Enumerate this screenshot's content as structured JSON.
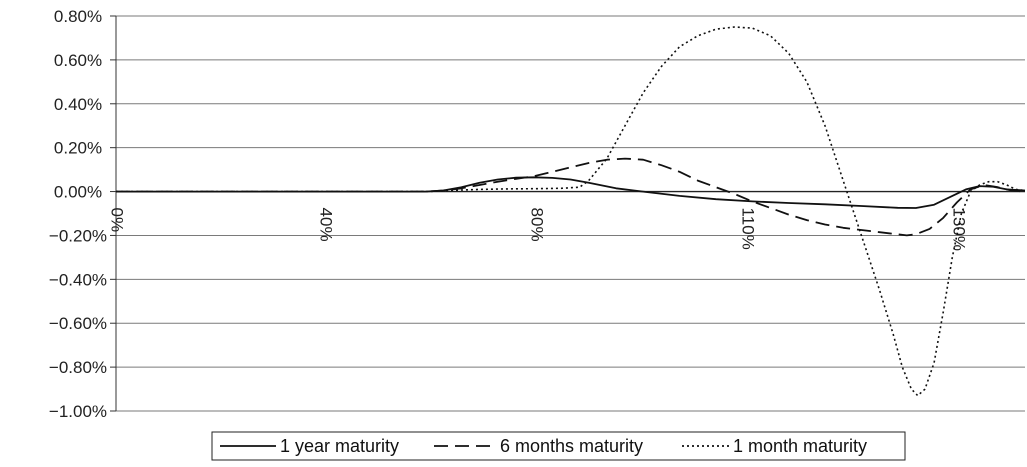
{
  "chart_data": {
    "type": "line",
    "title": "",
    "xlabel": "",
    "ylabel": "",
    "ylim": [
      -1.0,
      0.8
    ],
    "xlim": [
      0,
      1
    ],
    "y_ticks": [
      0.8,
      0.6,
      0.4,
      0.2,
      0.0,
      -0.2,
      -0.4,
      -0.6,
      -0.8,
      -1.0
    ],
    "y_tick_labels": [
      "0.80%",
      "0.60%",
      "0.40%",
      "0.20%",
      "0.00%",
      "−0.20%",
      "−0.40%",
      "−0.60%",
      "−0.80%",
      "−1.00%"
    ],
    "x_tick_labels": [
      {
        "label": "0%",
        "x": 0.0
      },
      {
        "label": "40%",
        "x": 0.23
      },
      {
        "label": "80%",
        "x": 0.462
      },
      {
        "label": "110%",
        "x": 0.694
      },
      {
        "label": "130%",
        "x": 0.926
      }
    ],
    "grid": "horizontal",
    "legend_position": "bottom",
    "series": [
      {
        "name": "1 year maturity",
        "style": "solid",
        "points": [
          [
            0,
            0
          ],
          [
            0.2,
            0
          ],
          [
            0.34,
            0
          ],
          [
            0.36,
            0.005
          ],
          [
            0.38,
            0.02
          ],
          [
            0.4,
            0.04
          ],
          [
            0.42,
            0.055
          ],
          [
            0.44,
            0.063
          ],
          [
            0.46,
            0.065
          ],
          [
            0.48,
            0.062
          ],
          [
            0.5,
            0.055
          ],
          [
            0.52,
            0.04
          ],
          [
            0.55,
            0.015
          ],
          [
            0.58,
            0
          ],
          [
            0.62,
            -0.02
          ],
          [
            0.66,
            -0.035
          ],
          [
            0.7,
            -0.045
          ],
          [
            0.74,
            -0.052
          ],
          [
            0.78,
            -0.058
          ],
          [
            0.82,
            -0.066
          ],
          [
            0.86,
            -0.074
          ],
          [
            0.88,
            -0.075
          ],
          [
            0.9,
            -0.06
          ],
          [
            0.92,
            -0.02
          ],
          [
            0.935,
            0.01
          ],
          [
            0.95,
            0.025
          ],
          [
            0.965,
            0.022
          ],
          [
            0.98,
            0.01
          ],
          [
            1.0,
            0.005
          ]
        ]
      },
      {
        "name": "6 months maturity",
        "style": "dashed",
        "points": [
          [
            0,
            0
          ],
          [
            0.2,
            0
          ],
          [
            0.34,
            0
          ],
          [
            0.36,
            0.005
          ],
          [
            0.38,
            0.015
          ],
          [
            0.4,
            0.03
          ],
          [
            0.42,
            0.045
          ],
          [
            0.44,
            0.058
          ],
          [
            0.46,
            0.07
          ],
          [
            0.48,
            0.09
          ],
          [
            0.5,
            0.11
          ],
          [
            0.52,
            0.13
          ],
          [
            0.54,
            0.145
          ],
          [
            0.56,
            0.15
          ],
          [
            0.58,
            0.145
          ],
          [
            0.6,
            0.12
          ],
          [
            0.62,
            0.09
          ],
          [
            0.64,
            0.05
          ],
          [
            0.66,
            0.02
          ],
          [
            0.68,
            -0.01
          ],
          [
            0.7,
            -0.045
          ],
          [
            0.72,
            -0.075
          ],
          [
            0.74,
            -0.105
          ],
          [
            0.76,
            -0.13
          ],
          [
            0.78,
            -0.15
          ],
          [
            0.8,
            -0.165
          ],
          [
            0.82,
            -0.175
          ],
          [
            0.84,
            -0.185
          ],
          [
            0.86,
            -0.195
          ],
          [
            0.87,
            -0.2
          ],
          [
            0.88,
            -0.195
          ],
          [
            0.895,
            -0.17
          ],
          [
            0.91,
            -0.12
          ],
          [
            0.925,
            -0.05
          ],
          [
            0.94,
            0.01
          ],
          [
            0.955,
            0.03
          ],
          [
            0.97,
            0.02
          ],
          [
            0.985,
            0.005
          ],
          [
            1.0,
            0
          ]
        ]
      },
      {
        "name": "1 month maturity",
        "style": "dotted",
        "points": [
          [
            0,
            0
          ],
          [
            0.2,
            0
          ],
          [
            0.34,
            0
          ],
          [
            0.36,
            0.003
          ],
          [
            0.38,
            0.007
          ],
          [
            0.4,
            0.01
          ],
          [
            0.43,
            0.012
          ],
          [
            0.46,
            0.013
          ],
          [
            0.49,
            0.015
          ],
          [
            0.51,
            0.02
          ],
          [
            0.52,
            0.05
          ],
          [
            0.54,
            0.15
          ],
          [
            0.56,
            0.3
          ],
          [
            0.58,
            0.45
          ],
          [
            0.6,
            0.57
          ],
          [
            0.62,
            0.66
          ],
          [
            0.64,
            0.71
          ],
          [
            0.66,
            0.74
          ],
          [
            0.68,
            0.75
          ],
          [
            0.7,
            0.745
          ],
          [
            0.72,
            0.71
          ],
          [
            0.74,
            0.63
          ],
          [
            0.76,
            0.5
          ],
          [
            0.78,
            0.3
          ],
          [
            0.8,
            0.05
          ],
          [
            0.82,
            -0.2
          ],
          [
            0.84,
            -0.45
          ],
          [
            0.855,
            -0.65
          ],
          [
            0.865,
            -0.8
          ],
          [
            0.875,
            -0.9
          ],
          [
            0.882,
            -0.93
          ],
          [
            0.89,
            -0.9
          ],
          [
            0.9,
            -0.78
          ],
          [
            0.91,
            -0.55
          ],
          [
            0.92,
            -0.3
          ],
          [
            0.93,
            -0.1
          ],
          [
            0.94,
            0.0
          ],
          [
            0.95,
            0.03
          ],
          [
            0.96,
            0.045
          ],
          [
            0.97,
            0.045
          ],
          [
            0.98,
            0.03
          ],
          [
            0.99,
            0.01
          ],
          [
            1.0,
            0.005
          ]
        ]
      }
    ]
  }
}
